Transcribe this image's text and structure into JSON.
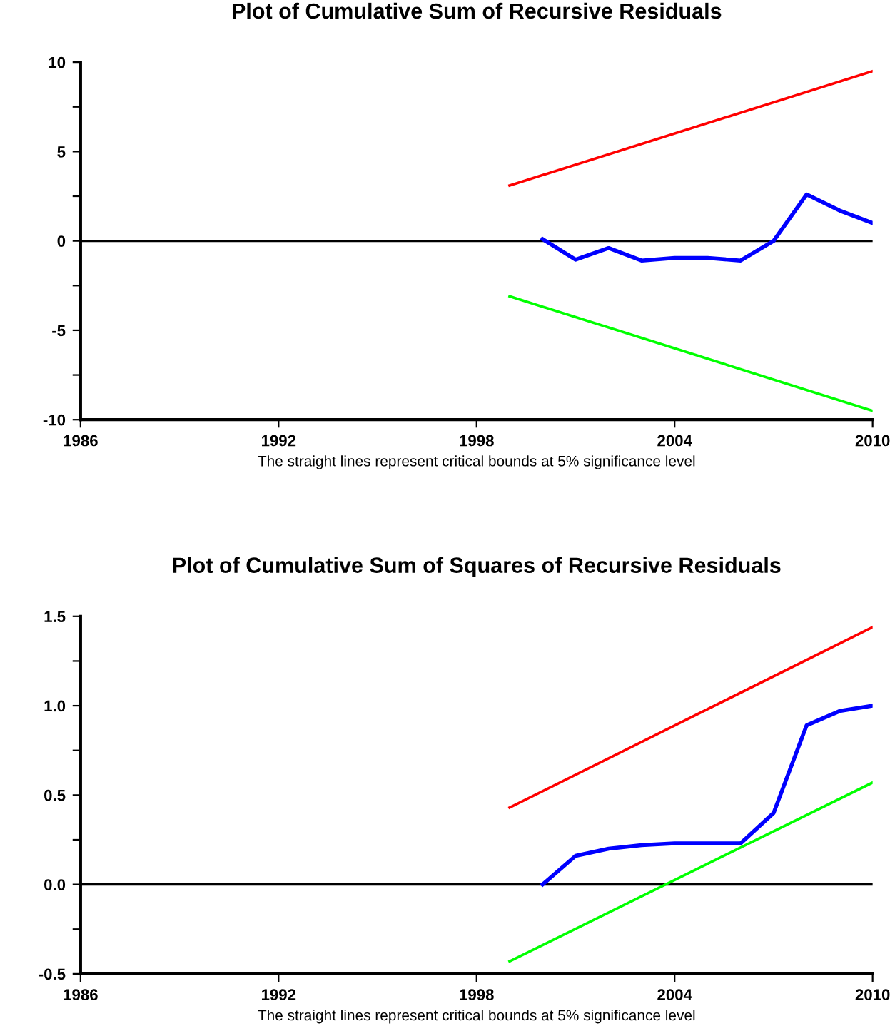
{
  "chart_data": [
    {
      "type": "line",
      "title": "Plot of Cumulative Sum of Recursive Residuals",
      "annotations": [
        "The straight lines represent critical bounds at 5% significance level"
      ],
      "xlim": [
        1986,
        2010
      ],
      "xticks": [
        1986,
        1992,
        1998,
        2004,
        2010
      ],
      "ylim": [
        -10,
        10
      ],
      "yticks": [
        -10,
        {
          "value": -7.5,
          "label": null
        },
        -5,
        {
          "value": -2.5,
          "label": null
        },
        0,
        {
          "value": 2.5,
          "label": null
        },
        5,
        {
          "value": 7.5,
          "label": null
        },
        10
      ],
      "ref_lines": [
        {
          "axis": "y",
          "value": 0,
          "color": "#000000"
        }
      ],
      "series": [
        {
          "color": "#0000ff",
          "x": [
            2000,
            2001,
            2002,
            2003,
            2004,
            2005,
            2006,
            2007,
            2008,
            2009,
            2010
          ],
          "values": [
            0.1,
            -1.05,
            -0.4,
            -1.1,
            -0.95,
            -0.95,
            -1.1,
            0.0,
            2.6,
            1.7,
            1.0
          ]
        },
        {
          "color": "#ff0000",
          "x": [
            1999,
            2010
          ],
          "values": [
            3.1,
            9.5
          ]
        },
        {
          "color": "#00ff00",
          "x": [
            1999,
            2010
          ],
          "values": [
            -3.1,
            -9.5
          ]
        }
      ]
    },
    {
      "type": "line",
      "title": "Plot of Cumulative Sum of Squares of Recursive Residuals",
      "annotations": [
        "The straight lines represent critical bounds at 5% significance level"
      ],
      "xlim": [
        1986,
        2010
      ],
      "xticks": [
        1986,
        1992,
        1998,
        2004,
        2010
      ],
      "ylim": [
        -0.5,
        1.5
      ],
      "yticks": [
        {
          "value": -0.5,
          "label": "-0.5"
        },
        {
          "value": -0.25,
          "label": null
        },
        {
          "value": 0,
          "label": "0.0"
        },
        {
          "value": 0.25,
          "label": null
        },
        0.5,
        {
          "value": 0.75,
          "label": null
        },
        {
          "value": 1,
          "label": "1.0"
        },
        {
          "value": 1.25,
          "label": null
        },
        1.5
      ],
      "ref_lines": [
        {
          "axis": "y",
          "value": 0,
          "color": "#000000"
        }
      ],
      "series": [
        {
          "color": "#0000ff",
          "x": [
            2000,
            2001,
            2002,
            2003,
            2004,
            2005,
            2006,
            2007,
            2008,
            2009,
            2010
          ],
          "values": [
            0.0,
            0.16,
            0.2,
            0.22,
            0.23,
            0.23,
            0.23,
            0.4,
            0.89,
            0.97,
            1.0
          ]
        },
        {
          "color": "#ff0000",
          "x": [
            1999,
            2010
          ],
          "values": [
            0.43,
            1.44
          ]
        },
        {
          "color": "#00ff00",
          "x": [
            1999,
            2010
          ],
          "values": [
            -0.43,
            0.57
          ]
        }
      ]
    }
  ]
}
